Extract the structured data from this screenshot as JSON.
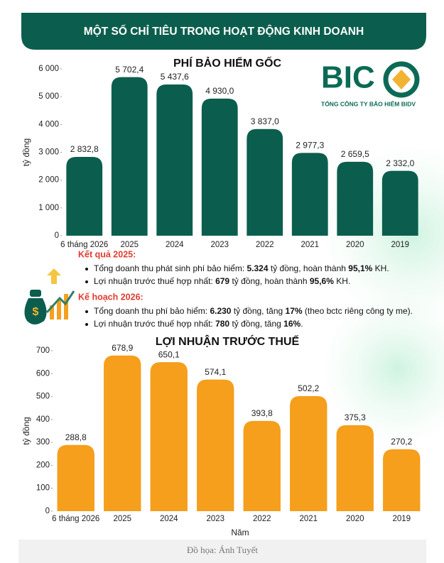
{
  "header": {
    "title": "MỘT SỐ CHỈ TIÊU TRONG HOẠT ĐỘNG KINH DOANH"
  },
  "logo": {
    "name": "BIC",
    "subtitle": "TỔNG CÔNG TY BẢO HIỂM BIDV"
  },
  "chart_data": [
    {
      "type": "bar",
      "title": "PHÍ BẢO HIỂM GỐC",
      "y_label": "tỷ đồng",
      "color": "#0b5e4d",
      "categories": [
        "6 tháng 2026",
        "2025",
        "2024",
        "2023",
        "2022",
        "2021",
        "2020",
        "2019"
      ],
      "values": [
        2832.8,
        5702.4,
        5437.6,
        4930.0,
        3837.0,
        2977.3,
        2659.5,
        2332.0
      ],
      "value_labels": [
        "2 832,8",
        "5 702,4",
        "5 437,6",
        "4 930,0",
        "3 837,0",
        "2 977,3",
        "2 659,5",
        "2 332,0"
      ],
      "ylim": [
        0,
        6000
      ],
      "yticks": [
        0,
        {
          "value": 1000,
          "label": "1 000"
        },
        {
          "value": 2000,
          "label": "2 000"
        },
        {
          "value": 3000,
          "label": "3 000"
        },
        {
          "value": 4000,
          "label": "4 000"
        },
        {
          "value": 5000,
          "label": "5 000"
        },
        {
          "value": 6000,
          "label": "6 000"
        }
      ],
      "grid": false
    },
    {
      "type": "bar",
      "title": "LỢI NHUẬN TRƯỚC THUẾ",
      "y_label": "tỷ đồng",
      "x_label": "Năm",
      "color": "#f59f1c",
      "categories": [
        "6 tháng 2026",
        "2025",
        "2024",
        "2023",
        "2022",
        "2021",
        "2020",
        "2019"
      ],
      "values": [
        288.8,
        678.9,
        650.1,
        574.1,
        393.8,
        502.2,
        375.3,
        270.2
      ],
      "value_labels": [
        "288,8",
        "678,9",
        "650,1",
        "574,1",
        "393,8",
        "502,2",
        "375,3",
        "270,2"
      ],
      "ylim": [
        0,
        700
      ],
      "yticks": [
        0,
        100,
        200,
        300,
        400,
        500,
        600,
        700
      ],
      "grid": false
    }
  ],
  "notes": [
    {
      "heading": "Kết quả 2025:",
      "items": [
        [
          {
            "text": "Tổng doanh thu phát sinh phí bảo hiểm: ",
            "bold": false
          },
          {
            "text": "5.324",
            "bold": true
          },
          {
            "text": " tỷ đồng, hoàn thành ",
            "bold": false
          },
          {
            "text": "95,1%",
            "bold": true
          },
          {
            "text": " KH.",
            "bold": false
          }
        ],
        [
          {
            "text": "Lợi nhuận trước thuế hợp nhất: ",
            "bold": false
          },
          {
            "text": "679",
            "bold": true
          },
          {
            "text": " tỷ đồng, hoàn thành ",
            "bold": false
          },
          {
            "text": "95,6%",
            "bold": true
          },
          {
            "text": " KH.",
            "bold": false
          }
        ]
      ]
    },
    {
      "heading": "Kế hoạch 2026:",
      "items": [
        [
          {
            "text": "Tổng doanh thu phí bảo hiểm: ",
            "bold": false
          },
          {
            "text": "6.230",
            "bold": true
          },
          {
            "text": " tỷ đồng, tăng ",
            "bold": false
          },
          {
            "text": "17%",
            "bold": true
          },
          {
            "text": " (theo bctc riêng công ty me).",
            "bold": false
          }
        ],
        [
          {
            "text": "Lợi nhuận trước thuế hợp nhất: ",
            "bold": false
          },
          {
            "text": "780",
            "bold": true
          },
          {
            "text": " tỷ đồng, tăng ",
            "bold": false
          },
          {
            "text": "16%",
            "bold": true
          },
          {
            "text": ".",
            "bold": false
          }
        ]
      ]
    }
  ],
  "footer": {
    "credit": "Đồ họa: Ánh Tuyết"
  }
}
